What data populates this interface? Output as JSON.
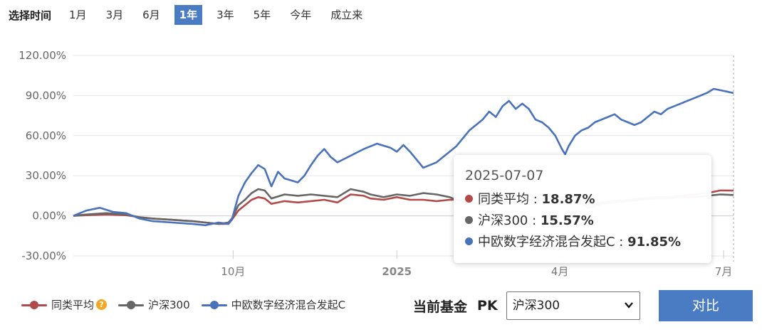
{
  "range_selector": {
    "label": "选择时间",
    "options": [
      "1月",
      "3月",
      "6月",
      "1年",
      "3年",
      "5年",
      "今年",
      "成立来"
    ],
    "active_index": 3
  },
  "chart_data": {
    "type": "line",
    "x_labels": [
      "10月",
      "2025",
      "4月",
      "7月"
    ],
    "y_ticks": [
      "120.00%",
      "90.00%",
      "60.00%",
      "30.00%",
      "0.00%",
      "-30.00%"
    ],
    "ylim": [
      -30,
      120
    ],
    "grid": true,
    "legend_position": "bottom",
    "series": [
      {
        "name": "同类平均",
        "color": "#b24a4a",
        "points": [
          [
            0,
            0
          ],
          [
            0.02,
            0.5
          ],
          [
            0.05,
            1
          ],
          [
            0.08,
            0.5
          ],
          [
            0.1,
            -1
          ],
          [
            0.12,
            -2
          ],
          [
            0.15,
            -3
          ],
          [
            0.18,
            -4
          ],
          [
            0.2,
            -5
          ],
          [
            0.22,
            -6
          ],
          [
            0.235,
            -6
          ],
          [
            0.24,
            -3
          ],
          [
            0.25,
            4
          ],
          [
            0.26,
            8
          ],
          [
            0.27,
            12
          ],
          [
            0.28,
            14
          ],
          [
            0.29,
            13
          ],
          [
            0.3,
            9
          ],
          [
            0.32,
            11
          ],
          [
            0.34,
            10
          ],
          [
            0.36,
            11
          ],
          [
            0.38,
            12
          ],
          [
            0.4,
            10
          ],
          [
            0.42,
            16
          ],
          [
            0.44,
            15
          ],
          [
            0.45,
            13
          ],
          [
            0.47,
            12
          ],
          [
            0.49,
            14
          ],
          [
            0.51,
            12
          ],
          [
            0.53,
            12
          ],
          [
            0.55,
            11
          ],
          [
            0.57,
            12
          ],
          [
            0.58,
            12
          ],
          [
            0.6,
            10
          ],
          [
            0.62,
            8
          ],
          [
            0.64,
            10
          ],
          [
            0.66,
            10
          ],
          [
            0.68,
            11
          ],
          [
            0.7,
            12
          ],
          [
            0.72,
            13
          ],
          [
            0.74,
            14
          ],
          [
            0.76,
            14
          ],
          [
            0.78,
            8
          ],
          [
            0.8,
            10
          ],
          [
            0.82,
            11
          ],
          [
            0.84,
            12
          ],
          [
            0.86,
            13
          ],
          [
            0.88,
            14
          ],
          [
            0.9,
            14
          ],
          [
            0.92,
            15
          ],
          [
            0.94,
            16
          ],
          [
            0.96,
            17
          ],
          [
            0.98,
            19
          ],
          [
            1,
            18.87
          ]
        ]
      },
      {
        "name": "沪深300",
        "color": "#666666",
        "points": [
          [
            0,
            0
          ],
          [
            0.02,
            1
          ],
          [
            0.05,
            2
          ],
          [
            0.08,
            1
          ],
          [
            0.1,
            -1
          ],
          [
            0.12,
            -2
          ],
          [
            0.15,
            -3
          ],
          [
            0.18,
            -4
          ],
          [
            0.2,
            -5
          ],
          [
            0.22,
            -6
          ],
          [
            0.235,
            -5
          ],
          [
            0.24,
            -2
          ],
          [
            0.25,
            8
          ],
          [
            0.26,
            12
          ],
          [
            0.27,
            17
          ],
          [
            0.28,
            20
          ],
          [
            0.29,
            19
          ],
          [
            0.3,
            13
          ],
          [
            0.32,
            16
          ],
          [
            0.34,
            15
          ],
          [
            0.36,
            16
          ],
          [
            0.38,
            15
          ],
          [
            0.4,
            14
          ],
          [
            0.42,
            20
          ],
          [
            0.44,
            18
          ],
          [
            0.45,
            16
          ],
          [
            0.47,
            14
          ],
          [
            0.49,
            16
          ],
          [
            0.51,
            15
          ],
          [
            0.53,
            17
          ],
          [
            0.55,
            16
          ],
          [
            0.57,
            14
          ],
          [
            0.58,
            12
          ],
          [
            0.6,
            10
          ],
          [
            0.62,
            9
          ],
          [
            0.64,
            11
          ],
          [
            0.66,
            10
          ],
          [
            0.68,
            12
          ],
          [
            0.7,
            12
          ],
          [
            0.72,
            13
          ],
          [
            0.74,
            13
          ],
          [
            0.76,
            13
          ],
          [
            0.78,
            6
          ],
          [
            0.8,
            9
          ],
          [
            0.82,
            10
          ],
          [
            0.84,
            11
          ],
          [
            0.86,
            12
          ],
          [
            0.88,
            13
          ],
          [
            0.9,
            13
          ],
          [
            0.92,
            14
          ],
          [
            0.94,
            14
          ],
          [
            0.96,
            15
          ],
          [
            0.98,
            16
          ],
          [
            1,
            15.57
          ]
        ]
      },
      {
        "name": "中欧数字经济混合发起C",
        "color": "#4a72bc",
        "points": [
          [
            0,
            0
          ],
          [
            0.02,
            4
          ],
          [
            0.04,
            6
          ],
          [
            0.06,
            3
          ],
          [
            0.08,
            2
          ],
          [
            0.1,
            -2
          ],
          [
            0.12,
            -4
          ],
          [
            0.15,
            -5
          ],
          [
            0.18,
            -6
          ],
          [
            0.2,
            -7
          ],
          [
            0.22,
            -5
          ],
          [
            0.235,
            -6
          ],
          [
            0.24,
            -3
          ],
          [
            0.25,
            15
          ],
          [
            0.26,
            25
          ],
          [
            0.27,
            32
          ],
          [
            0.28,
            38
          ],
          [
            0.29,
            35
          ],
          [
            0.3,
            22
          ],
          [
            0.31,
            33
          ],
          [
            0.32,
            28
          ],
          [
            0.34,
            25
          ],
          [
            0.35,
            30
          ],
          [
            0.36,
            38
          ],
          [
            0.37,
            45
          ],
          [
            0.38,
            50
          ],
          [
            0.39,
            44
          ],
          [
            0.4,
            40
          ],
          [
            0.42,
            45
          ],
          [
            0.44,
            50
          ],
          [
            0.46,
            54
          ],
          [
            0.48,
            51
          ],
          [
            0.49,
            48
          ],
          [
            0.5,
            53
          ],
          [
            0.51,
            48
          ],
          [
            0.52,
            42
          ],
          [
            0.53,
            36
          ],
          [
            0.54,
            38
          ],
          [
            0.55,
            40
          ],
          [
            0.56,
            44
          ],
          [
            0.57,
            48
          ],
          [
            0.58,
            52
          ],
          [
            0.59,
            58
          ],
          [
            0.6,
            64
          ],
          [
            0.61,
            68
          ],
          [
            0.62,
            72
          ],
          [
            0.63,
            78
          ],
          [
            0.64,
            74
          ],
          [
            0.65,
            82
          ],
          [
            0.66,
            86
          ],
          [
            0.67,
            80
          ],
          [
            0.68,
            84
          ],
          [
            0.69,
            80
          ],
          [
            0.7,
            72
          ],
          [
            0.71,
            70
          ],
          [
            0.72,
            66
          ],
          [
            0.73,
            60
          ],
          [
            0.74,
            50
          ],
          [
            0.745,
            46
          ],
          [
            0.75,
            52
          ],
          [
            0.76,
            60
          ],
          [
            0.77,
            64
          ],
          [
            0.78,
            66
          ],
          [
            0.79,
            70
          ],
          [
            0.8,
            72
          ],
          [
            0.81,
            74
          ],
          [
            0.82,
            76
          ],
          [
            0.83,
            72
          ],
          [
            0.84,
            70
          ],
          [
            0.85,
            68
          ],
          [
            0.86,
            70
          ],
          [
            0.87,
            74
          ],
          [
            0.88,
            78
          ],
          [
            0.89,
            76
          ],
          [
            0.9,
            80
          ],
          [
            0.91,
            82
          ],
          [
            0.92,
            84
          ],
          [
            0.93,
            86
          ],
          [
            0.94,
            88
          ],
          [
            0.95,
            90
          ],
          [
            0.96,
            92
          ],
          [
            0.97,
            95
          ],
          [
            0.98,
            94
          ],
          [
            0.99,
            93
          ],
          [
            1,
            91.85
          ]
        ]
      }
    ],
    "tooltip": {
      "date": "2025-07-07",
      "rows": [
        {
          "label": "同类平均 : ",
          "value": "18.87%",
          "color": "#b24a4a"
        },
        {
          "label": "沪深300 : ",
          "value": "15.57%",
          "color": "#666666"
        },
        {
          "label": "中欧数字经济混合发起C : ",
          "value": "91.85%",
          "color": "#4a72bc"
        }
      ]
    }
  },
  "legend": {
    "items": [
      {
        "label": "同类平均",
        "color": "#b24a4a",
        "has_help": true
      },
      {
        "label": "沪深300",
        "color": "#666666",
        "has_help": false
      },
      {
        "label": "中欧数字经济混合发起C",
        "color": "#4a72bc",
        "has_help": false
      }
    ],
    "help_glyph": "?"
  },
  "compare": {
    "label": "当前基金",
    "pk": "PK",
    "select_value": "沪深300",
    "button": "对比"
  }
}
